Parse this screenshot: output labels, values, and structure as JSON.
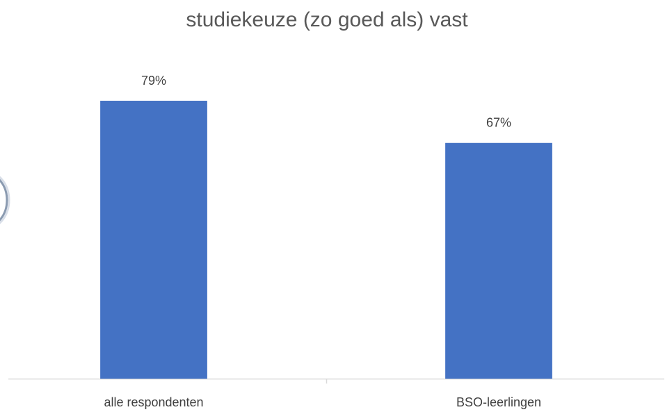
{
  "chart_data": {
    "type": "bar",
    "title": "studiekeuze (zo goed als) vast",
    "categories": [
      "alle respondenten",
      "BSO-leerlingen"
    ],
    "values": [
      79,
      67
    ],
    "value_labels": [
      "79%",
      "67%"
    ],
    "color": "#4472c4"
  }
}
